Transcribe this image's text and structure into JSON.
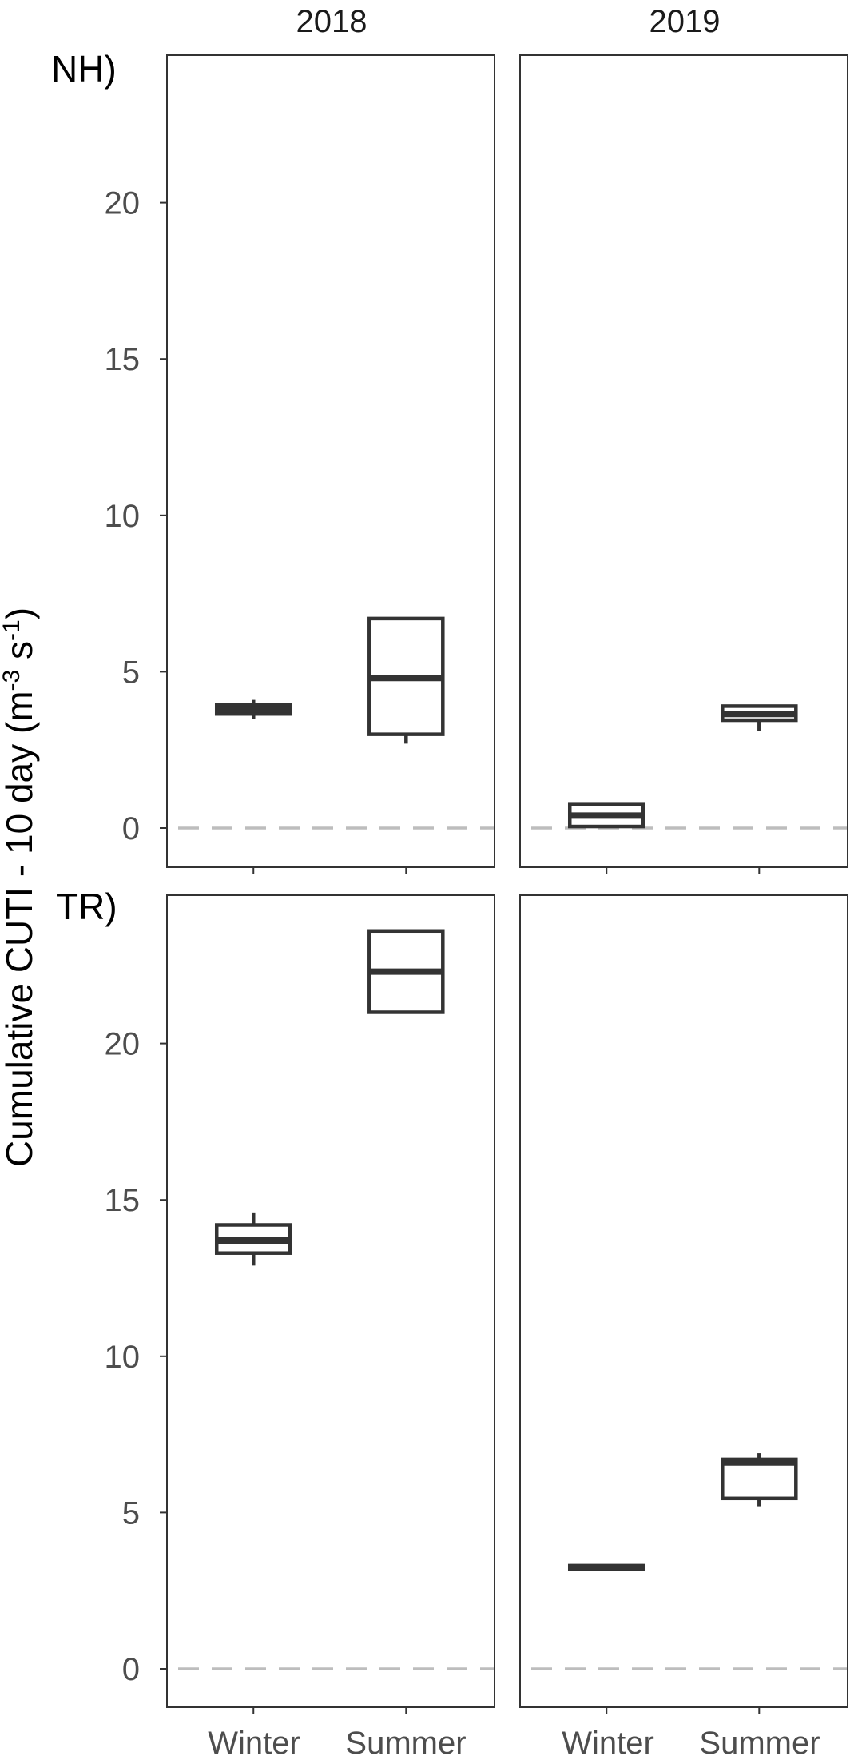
{
  "chart_data": {
    "type": "boxplot",
    "y_label_main": "Cumulative CUTI - 10 day (m",
    "y_label_sup1": "-3",
    "y_label_mid": " s",
    "y_label_sup2": "-1",
    "y_label_end": ")",
    "columns": [
      "2018",
      "2019"
    ],
    "rows": [
      "NH)",
      "TR)"
    ],
    "categories": [
      "Winter",
      "Summer"
    ],
    "y_ticks": [
      0,
      5,
      10,
      15,
      20
    ],
    "y_tick_labels": [
      "0",
      "5",
      "10",
      "15",
      "20"
    ],
    "reference_line": 0,
    "ylim": [
      -1.2,
      24.8
    ],
    "panels": [
      {
        "row": "NH)",
        "column": "2018",
        "boxes": [
          {
            "category": "Winter",
            "min": 3.5,
            "q1": 3.65,
            "median": 3.8,
            "q3": 3.95,
            "max": 4.1
          },
          {
            "category": "Summer",
            "min": 2.7,
            "q1": 3.0,
            "median": 4.8,
            "q3": 6.7,
            "max": 6.7
          }
        ]
      },
      {
        "row": "NH)",
        "column": "2019",
        "boxes": [
          {
            "category": "Winter",
            "min": 0.0,
            "q1": 0.05,
            "median": 0.4,
            "q3": 0.75,
            "max": 0.75
          },
          {
            "category": "Summer",
            "min": 3.1,
            "q1": 3.45,
            "median": 3.65,
            "q3": 3.9,
            "max": 3.9
          }
        ]
      },
      {
        "row": "TR)",
        "column": "2018",
        "boxes": [
          {
            "category": "Winter",
            "min": 12.9,
            "q1": 13.3,
            "median": 13.7,
            "q3": 14.2,
            "max": 14.6
          },
          {
            "category": "Summer",
            "min": 21.0,
            "q1": 21.0,
            "median": 22.3,
            "q3": 23.6,
            "max": 23.6
          }
        ]
      },
      {
        "row": "TR)",
        "column": "2019",
        "boxes": [
          {
            "category": "Winter",
            "min": 3.2,
            "q1": 3.2,
            "median": 3.25,
            "q3": 3.3,
            "max": 3.3
          },
          {
            "category": "Summer",
            "min": 5.2,
            "q1": 5.45,
            "median": 6.6,
            "q3": 6.7,
            "max": 6.9
          }
        ]
      }
    ]
  }
}
